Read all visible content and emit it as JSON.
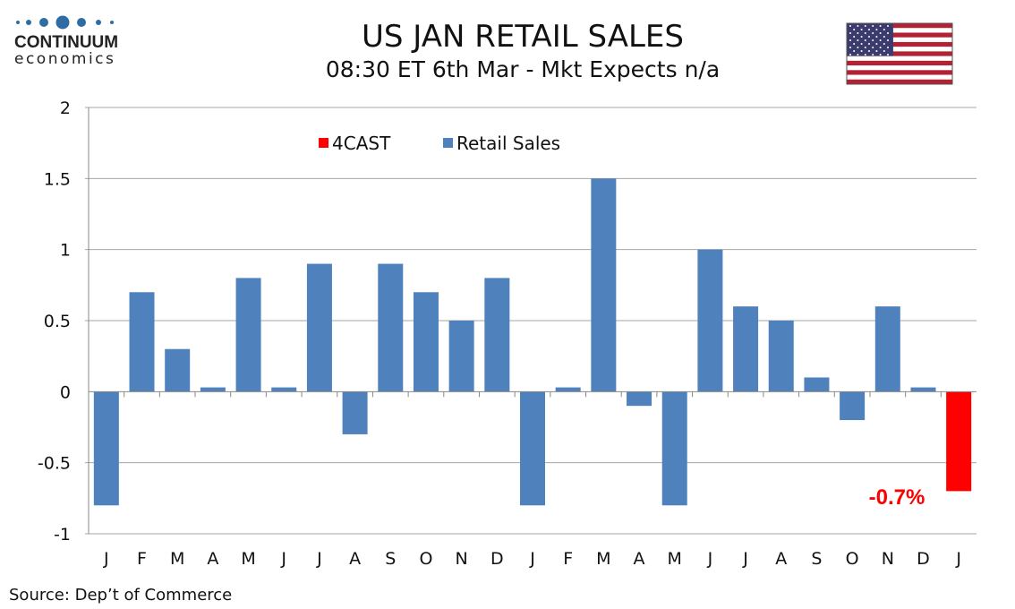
{
  "logo": {
    "line1": "CONTINUUM",
    "line2": "economics"
  },
  "flag": "us-flag",
  "chart_data": {
    "type": "bar",
    "title": "US JAN RETAIL SALES",
    "subtitle": "08:30 ET 6th Mar - Mkt Expects n/a",
    "categories": [
      "J",
      "F",
      "M",
      "A",
      "M",
      "J",
      "J",
      "A",
      "S",
      "O",
      "N",
      "D",
      "J",
      "F",
      "M",
      "A",
      "M",
      "J",
      "J",
      "A",
      "S",
      "O",
      "N",
      "D",
      "J"
    ],
    "series": [
      {
        "name": "4CAST",
        "color": "#ff0000",
        "values": [
          null,
          null,
          null,
          null,
          null,
          null,
          null,
          null,
          null,
          null,
          null,
          null,
          null,
          null,
          null,
          null,
          null,
          null,
          null,
          null,
          null,
          null,
          null,
          null,
          -0.7
        ]
      },
      {
        "name": "Retail Sales",
        "color": "#4f81bd",
        "values": [
          -0.8,
          0.7,
          0.3,
          0.03,
          0.8,
          0.03,
          0.9,
          -0.3,
          0.9,
          0.7,
          0.5,
          0.8,
          -0.8,
          0.03,
          1.5,
          -0.1,
          -0.8,
          1.0,
          0.6,
          0.5,
          0.1,
          -0.2,
          0.6,
          0.03,
          null
        ]
      }
    ],
    "ylim": [
      -1,
      2
    ],
    "yticks": [
      "2",
      "1.5",
      "1",
      "0.5",
      "0",
      "-0.5",
      "-1"
    ],
    "ytick_values": [
      2,
      1.5,
      1,
      0.5,
      0,
      -0.5,
      -1
    ],
    "grid": true,
    "legend": "top-left",
    "annotation": "-0.7%",
    "source": "Source: Dep’t of Commerce"
  }
}
